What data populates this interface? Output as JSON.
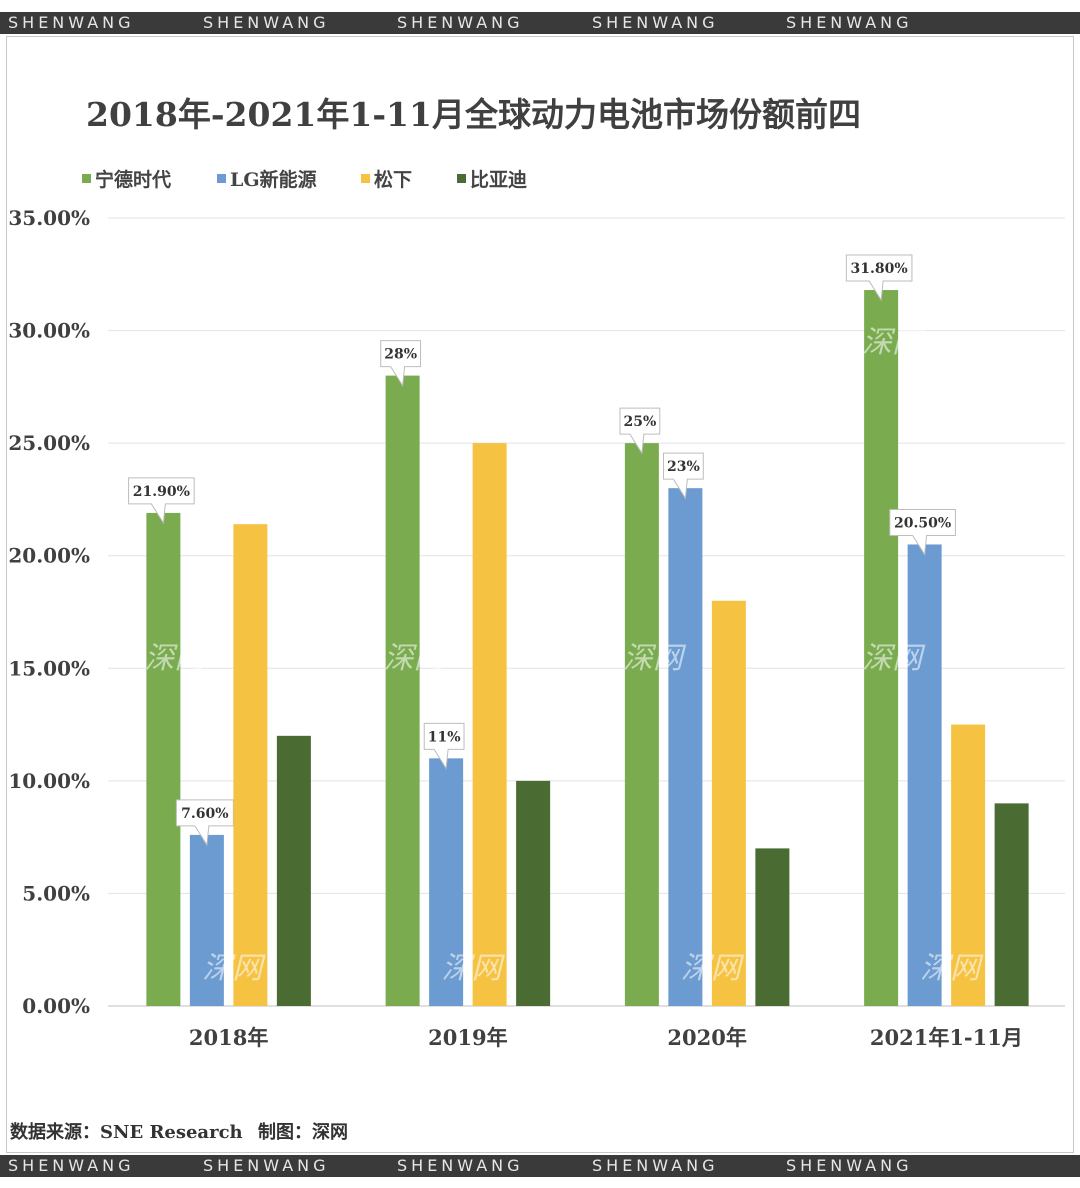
{
  "banner": {
    "top": [
      "SHENWANG",
      "SHENWANG",
      "SHENWANG",
      "SHENWANG",
      "SHENWANG"
    ],
    "bottom": [
      "SHENWANG",
      "SHENWANG",
      "SHENWANG",
      "SHENWANG",
      "SHENWANG"
    ]
  },
  "footer": {
    "source": "数据来源：SNE Research",
    "credit": "制图：深网"
  },
  "watermark": "深网",
  "chart_data": {
    "type": "bar",
    "title": "2018年-2021年1-11月全球动力电池市场份额前四",
    "categories": [
      "2018年",
      "2019年",
      "2020年",
      "2021年1-11月"
    ],
    "ylim": [
      0,
      35
    ],
    "yticks": [
      "0.00%",
      "5.00%",
      "10.00%",
      "15.00%",
      "20.00%",
      "25.00%",
      "30.00%",
      "35.00%"
    ],
    "xlabel": "",
    "ylabel": "",
    "grid": true,
    "legend_position": "top-left",
    "series": [
      {
        "name": "宁德时代",
        "color": "#7aab4f",
        "values": [
          21.9,
          28,
          25,
          31.8
        ],
        "labels": [
          "21.90%",
          "28%",
          "25%",
          "31.80%"
        ]
      },
      {
        "name": "LG新能源",
        "color": "#6b9bd1",
        "values": [
          7.6,
          11,
          23,
          20.5
        ],
        "labels": [
          "7.60%",
          "11%",
          "23%",
          "20.50%"
        ]
      },
      {
        "name": "松下",
        "color": "#f5c242",
        "values": [
          21.4,
          25,
          18,
          12.5
        ],
        "labels": [
          "",
          "",
          "",
          ""
        ]
      },
      {
        "name": "比亚迪",
        "color": "#4a6b32",
        "values": [
          12,
          10,
          7,
          9
        ],
        "labels": [
          "",
          "",
          "",
          ""
        ]
      }
    ]
  }
}
